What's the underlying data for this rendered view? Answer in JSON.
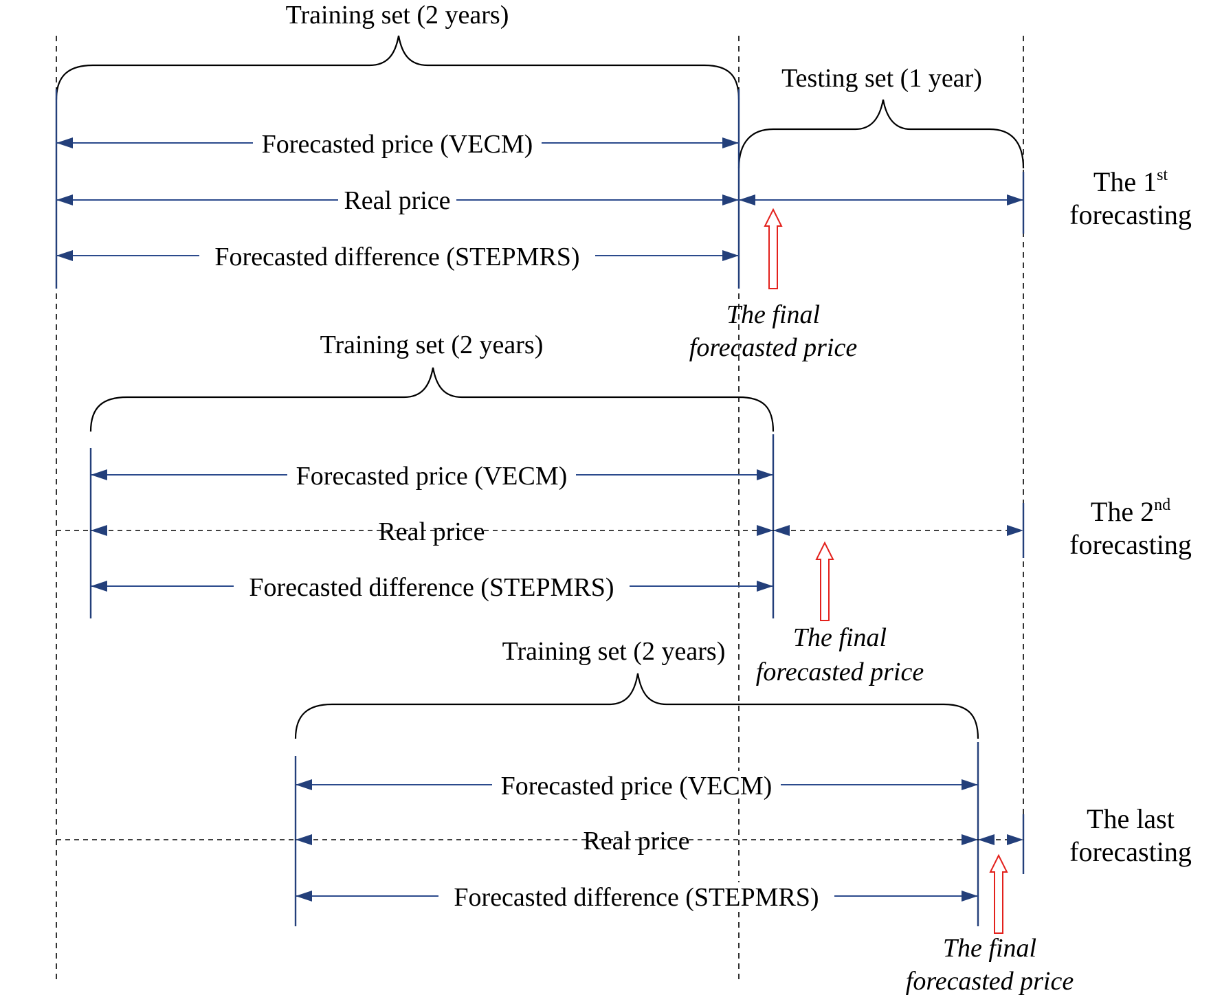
{
  "labels": {
    "training_set": "Training set (2 years)",
    "testing_set": "Testing set (1 year)",
    "forecasted_price": "Forecasted price (VECM)",
    "real_price": "Real price",
    "forecasted_difference": "Forecasted difference (STEPMRS)",
    "final_line1": "The final",
    "final_line2": "forecasted price"
  },
  "rounds": [
    {
      "prefix": "The 1",
      "sup": "st",
      "line2": "forecasting"
    },
    {
      "prefix": "The 2",
      "sup": "nd",
      "line2": "forecasting"
    },
    {
      "prefix": "The last",
      "sup": "",
      "line2": "forecasting"
    }
  ],
  "colors": {
    "arrow_blue": "#233f7a",
    "highlight_red": "#e3211c"
  }
}
